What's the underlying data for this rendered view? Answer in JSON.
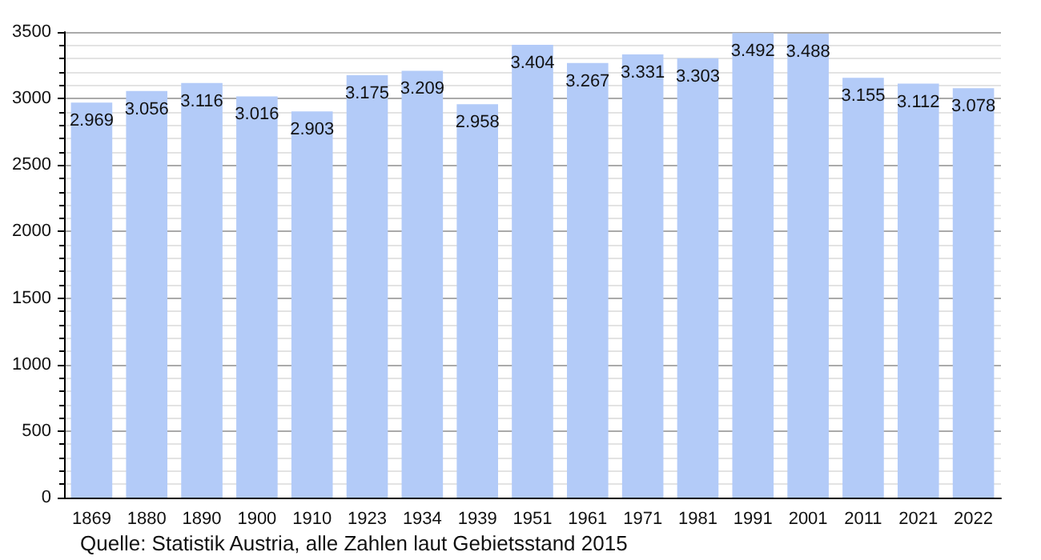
{
  "chart_data": {
    "type": "bar",
    "categories": [
      "1869",
      "1880",
      "1890",
      "1900",
      "1910",
      "1923",
      "1934",
      "1939",
      "1951",
      "1961",
      "1971",
      "1981",
      "1991",
      "2001",
      "2011",
      "2021",
      "2022"
    ],
    "values": [
      2969,
      3056,
      3116,
      3016,
      2903,
      3175,
      3209,
      2958,
      3404,
      3267,
      3331,
      3303,
      3492,
      3488,
      3155,
      3112,
      3078
    ],
    "value_labels": [
      "2.969",
      "3.056",
      "3.116",
      "3.016",
      "2.903",
      "3.175",
      "3.209",
      "2.958",
      "3.404",
      "3.267",
      "3.331",
      "3.303",
      "3.492",
      "3.488",
      "3.155",
      "3.112",
      "3.078"
    ],
    "color": "#b3cbf8",
    "ylim": [
      0,
      3500
    ],
    "yticks": [
      0,
      500,
      1000,
      1500,
      2000,
      2500,
      3000,
      3500
    ],
    "grid": "y",
    "annotations": [
      "Quelle: Statistik Austria, alle Zahlen laut Gebietsstand 2015"
    ]
  }
}
